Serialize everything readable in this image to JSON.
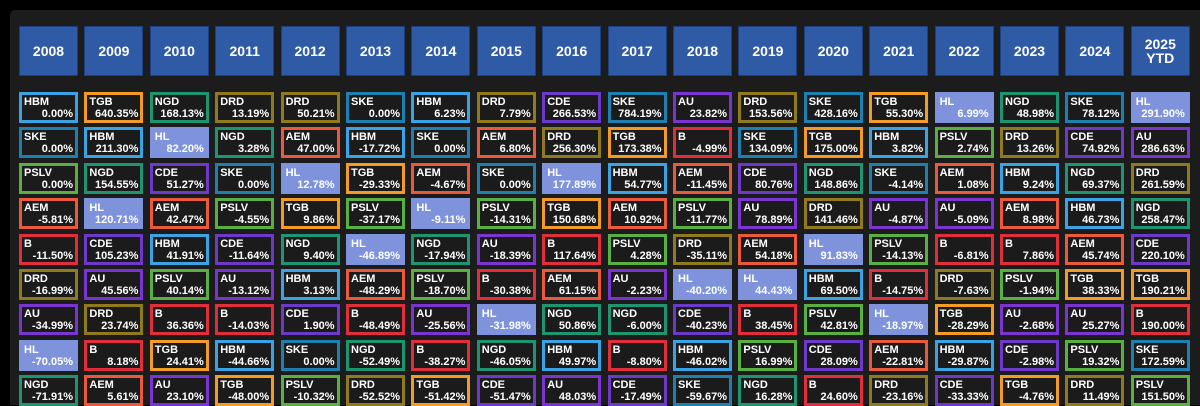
{
  "chart_data": {
    "type": "table",
    "title": "",
    "years": [
      "2008",
      "2009",
      "2010",
      "2011",
      "2012",
      "2013",
      "2014",
      "2015",
      "2016",
      "2017",
      "2018",
      "2019",
      "2020",
      "2021",
      "2022",
      "2023",
      "2024",
      "2025 YTD"
    ],
    "columns": [
      [
        [
          "HBM",
          "0.00%"
        ],
        [
          "SKE",
          "0.00%"
        ],
        [
          "PSLV",
          "0.00%"
        ],
        [
          "AEM",
          "-5.81%"
        ],
        [
          "B",
          "-11.50%"
        ],
        [
          "DRD",
          "-16.99%"
        ],
        [
          "AU",
          "-34.99%"
        ],
        [
          "HL",
          "-70.05%"
        ],
        [
          "NGD",
          "-71.91%"
        ]
      ],
      [
        [
          "TGB",
          "640.35%"
        ],
        [
          "HBM",
          "211.30%"
        ],
        [
          "NGD",
          "154.55%"
        ],
        [
          "HL",
          "120.71%"
        ],
        [
          "CDE",
          "105.23%"
        ],
        [
          "AU",
          "45.56%"
        ],
        [
          "DRD",
          "23.74%"
        ],
        [
          "B",
          "8.18%"
        ],
        [
          "AEM",
          "5.61%"
        ]
      ],
      [
        [
          "NGD",
          "168.13%"
        ],
        [
          "HL",
          "82.20%"
        ],
        [
          "CDE",
          "51.27%"
        ],
        [
          "AEM",
          "42.47%"
        ],
        [
          "HBM",
          "41.91%"
        ],
        [
          "PSLV",
          "40.14%"
        ],
        [
          "B",
          "36.36%"
        ],
        [
          "TGB",
          "24.41%"
        ],
        [
          "AU",
          "23.10%"
        ]
      ],
      [
        [
          "DRD",
          "13.19%"
        ],
        [
          "NGD",
          "3.28%"
        ],
        [
          "SKE",
          "0.00%"
        ],
        [
          "PSLV",
          "-4.55%"
        ],
        [
          "CDE",
          "-11.64%"
        ],
        [
          "AU",
          "-13.12%"
        ],
        [
          "B",
          "-14.03%"
        ],
        [
          "HBM",
          "-44.66%"
        ],
        [
          "TGB",
          "-48.00%"
        ]
      ],
      [
        [
          "DRD",
          "50.21%"
        ],
        [
          "AEM",
          "47.00%"
        ],
        [
          "HL",
          "12.78%"
        ],
        [
          "TGB",
          "9.86%"
        ],
        [
          "NGD",
          "9.40%"
        ],
        [
          "HBM",
          "3.13%"
        ],
        [
          "CDE",
          "1.90%"
        ],
        [
          "SKE",
          "0.00%"
        ],
        [
          "PSLV",
          "-10.32%"
        ]
      ],
      [
        [
          "SKE",
          "0.00%"
        ],
        [
          "HBM",
          "-17.72%"
        ],
        [
          "TGB",
          "-29.33%"
        ],
        [
          "PSLV",
          "-37.17%"
        ],
        [
          "HL",
          "-46.89%"
        ],
        [
          "AEM",
          "-48.29%"
        ],
        [
          "B",
          "-48.49%"
        ],
        [
          "NGD",
          "-52.49%"
        ],
        [
          "DRD",
          "-52.52%"
        ]
      ],
      [
        [
          "HBM",
          "6.23%"
        ],
        [
          "SKE",
          "0.00%"
        ],
        [
          "AEM",
          "-4.67%"
        ],
        [
          "HL",
          "-9.11%"
        ],
        [
          "NGD",
          "-17.94%"
        ],
        [
          "PSLV",
          "-18.70%"
        ],
        [
          "AU",
          "-25.56%"
        ],
        [
          "B",
          "-38.27%"
        ],
        [
          "TGB",
          "-51.42%"
        ]
      ],
      [
        [
          "DRD",
          "7.79%"
        ],
        [
          "AEM",
          "6.80%"
        ],
        [
          "SKE",
          "0.00%"
        ],
        [
          "PSLV",
          "-14.31%"
        ],
        [
          "AU",
          "-18.39%"
        ],
        [
          "B",
          "-30.38%"
        ],
        [
          "HL",
          "-31.98%"
        ],
        [
          "NGD",
          "-46.05%"
        ],
        [
          "CDE",
          "-51.47%"
        ]
      ],
      [
        [
          "CDE",
          "266.53%"
        ],
        [
          "DRD",
          "256.30%"
        ],
        [
          "HL",
          "177.89%"
        ],
        [
          "TGB",
          "150.68%"
        ],
        [
          "B",
          "117.64%"
        ],
        [
          "AEM",
          "61.15%"
        ],
        [
          "NGD",
          "50.86%"
        ],
        [
          "HBM",
          "49.97%"
        ],
        [
          "AU",
          "48.03%"
        ]
      ],
      [
        [
          "SKE",
          "784.19%"
        ],
        [
          "TGB",
          "173.38%"
        ],
        [
          "HBM",
          "54.77%"
        ],
        [
          "AEM",
          "10.92%"
        ],
        [
          "PSLV",
          "4.28%"
        ],
        [
          "AU",
          "-2.23%"
        ],
        [
          "NGD",
          "-6.00%"
        ],
        [
          "B",
          "-8.80%"
        ],
        [
          "CDE",
          "-17.49%"
        ]
      ],
      [
        [
          "AU",
          "23.82%"
        ],
        [
          "B",
          "-4.99%"
        ],
        [
          "AEM",
          "-11.45%"
        ],
        [
          "PSLV",
          "-11.77%"
        ],
        [
          "DRD",
          "-35.11%"
        ],
        [
          "HL",
          "-40.20%"
        ],
        [
          "CDE",
          "-40.23%"
        ],
        [
          "HBM",
          "-46.02%"
        ],
        [
          "SKE",
          "-59.67%"
        ]
      ],
      [
        [
          "DRD",
          "153.56%"
        ],
        [
          "SKE",
          "134.09%"
        ],
        [
          "CDE",
          "80.76%"
        ],
        [
          "AU",
          "78.89%"
        ],
        [
          "AEM",
          "54.18%"
        ],
        [
          "HL",
          "44.43%"
        ],
        [
          "B",
          "38.45%"
        ],
        [
          "PSLV",
          "16.99%"
        ],
        [
          "NGD",
          "16.28%"
        ]
      ],
      [
        [
          "SKE",
          "428.16%"
        ],
        [
          "TGB",
          "175.00%"
        ],
        [
          "NGD",
          "148.86%"
        ],
        [
          "DRD",
          "141.46%"
        ],
        [
          "HL",
          "91.83%"
        ],
        [
          "HBM",
          "69.50%"
        ],
        [
          "PSLV",
          "42.81%"
        ],
        [
          "CDE",
          "28.09%"
        ],
        [
          "B",
          "24.60%"
        ]
      ],
      [
        [
          "TGB",
          "55.30%"
        ],
        [
          "HBM",
          "3.82%"
        ],
        [
          "SKE",
          "-4.14%"
        ],
        [
          "AU",
          "-4.87%"
        ],
        [
          "PSLV",
          "-14.13%"
        ],
        [
          "B",
          "-14.75%"
        ],
        [
          "HL",
          "-18.97%"
        ],
        [
          "AEM",
          "-22.81%"
        ],
        [
          "DRD",
          "-23.16%"
        ]
      ],
      [
        [
          "HL",
          "6.99%"
        ],
        [
          "PSLV",
          "2.74%"
        ],
        [
          "AEM",
          "1.08%"
        ],
        [
          "AU",
          "-5.09%"
        ],
        [
          "B",
          "-6.81%"
        ],
        [
          "DRD",
          "-7.63%"
        ],
        [
          "TGB",
          "-28.29%"
        ],
        [
          "HBM",
          "-29.87%"
        ],
        [
          "CDE",
          "-33.33%"
        ]
      ],
      [
        [
          "NGD",
          "48.98%"
        ],
        [
          "DRD",
          "13.26%"
        ],
        [
          "HBM",
          "9.24%"
        ],
        [
          "AEM",
          "8.98%"
        ],
        [
          "B",
          "7.86%"
        ],
        [
          "PSLV",
          "-1.94%"
        ],
        [
          "AU",
          "-2.68%"
        ],
        [
          "CDE",
          "-2.98%"
        ],
        [
          "TGB",
          "-4.76%"
        ]
      ],
      [
        [
          "SKE",
          "78.12%"
        ],
        [
          "CDE",
          "74.92%"
        ],
        [
          "NGD",
          "69.37%"
        ],
        [
          "HBM",
          "46.73%"
        ],
        [
          "AEM",
          "45.74%"
        ],
        [
          "TGB",
          "38.33%"
        ],
        [
          "AU",
          "25.27%"
        ],
        [
          "PSLV",
          "19.32%"
        ],
        [
          "DRD",
          "11.49%"
        ]
      ],
      [
        [
          "HL",
          "291.90%"
        ],
        [
          "AU",
          "286.63%"
        ],
        [
          "DRD",
          "261.59%"
        ],
        [
          "NGD",
          "258.47%"
        ],
        [
          "CDE",
          "220.10%"
        ],
        [
          "TGB",
          "190.21%"
        ],
        [
          "B",
          "190.00%"
        ],
        [
          "SKE",
          "172.59%"
        ],
        [
          "PSLV",
          "151.50%"
        ]
      ]
    ],
    "ticker_colors": {
      "HBM": "#3ba3e3",
      "SKE": "#1f7fae",
      "PSLV": "#59b041",
      "AEM": "#ea5a3a",
      "B": "#e02f3b",
      "DRD": "#8f7a1d",
      "AU": "#7a35d0",
      "HL": "#7e93dc",
      "NGD": "#1e9470",
      "TGB": "#f39c25",
      "CDE": "#6d39c9"
    },
    "header_color": "#2f5aa6",
    "highlight_fill": "#7e93dc"
  }
}
